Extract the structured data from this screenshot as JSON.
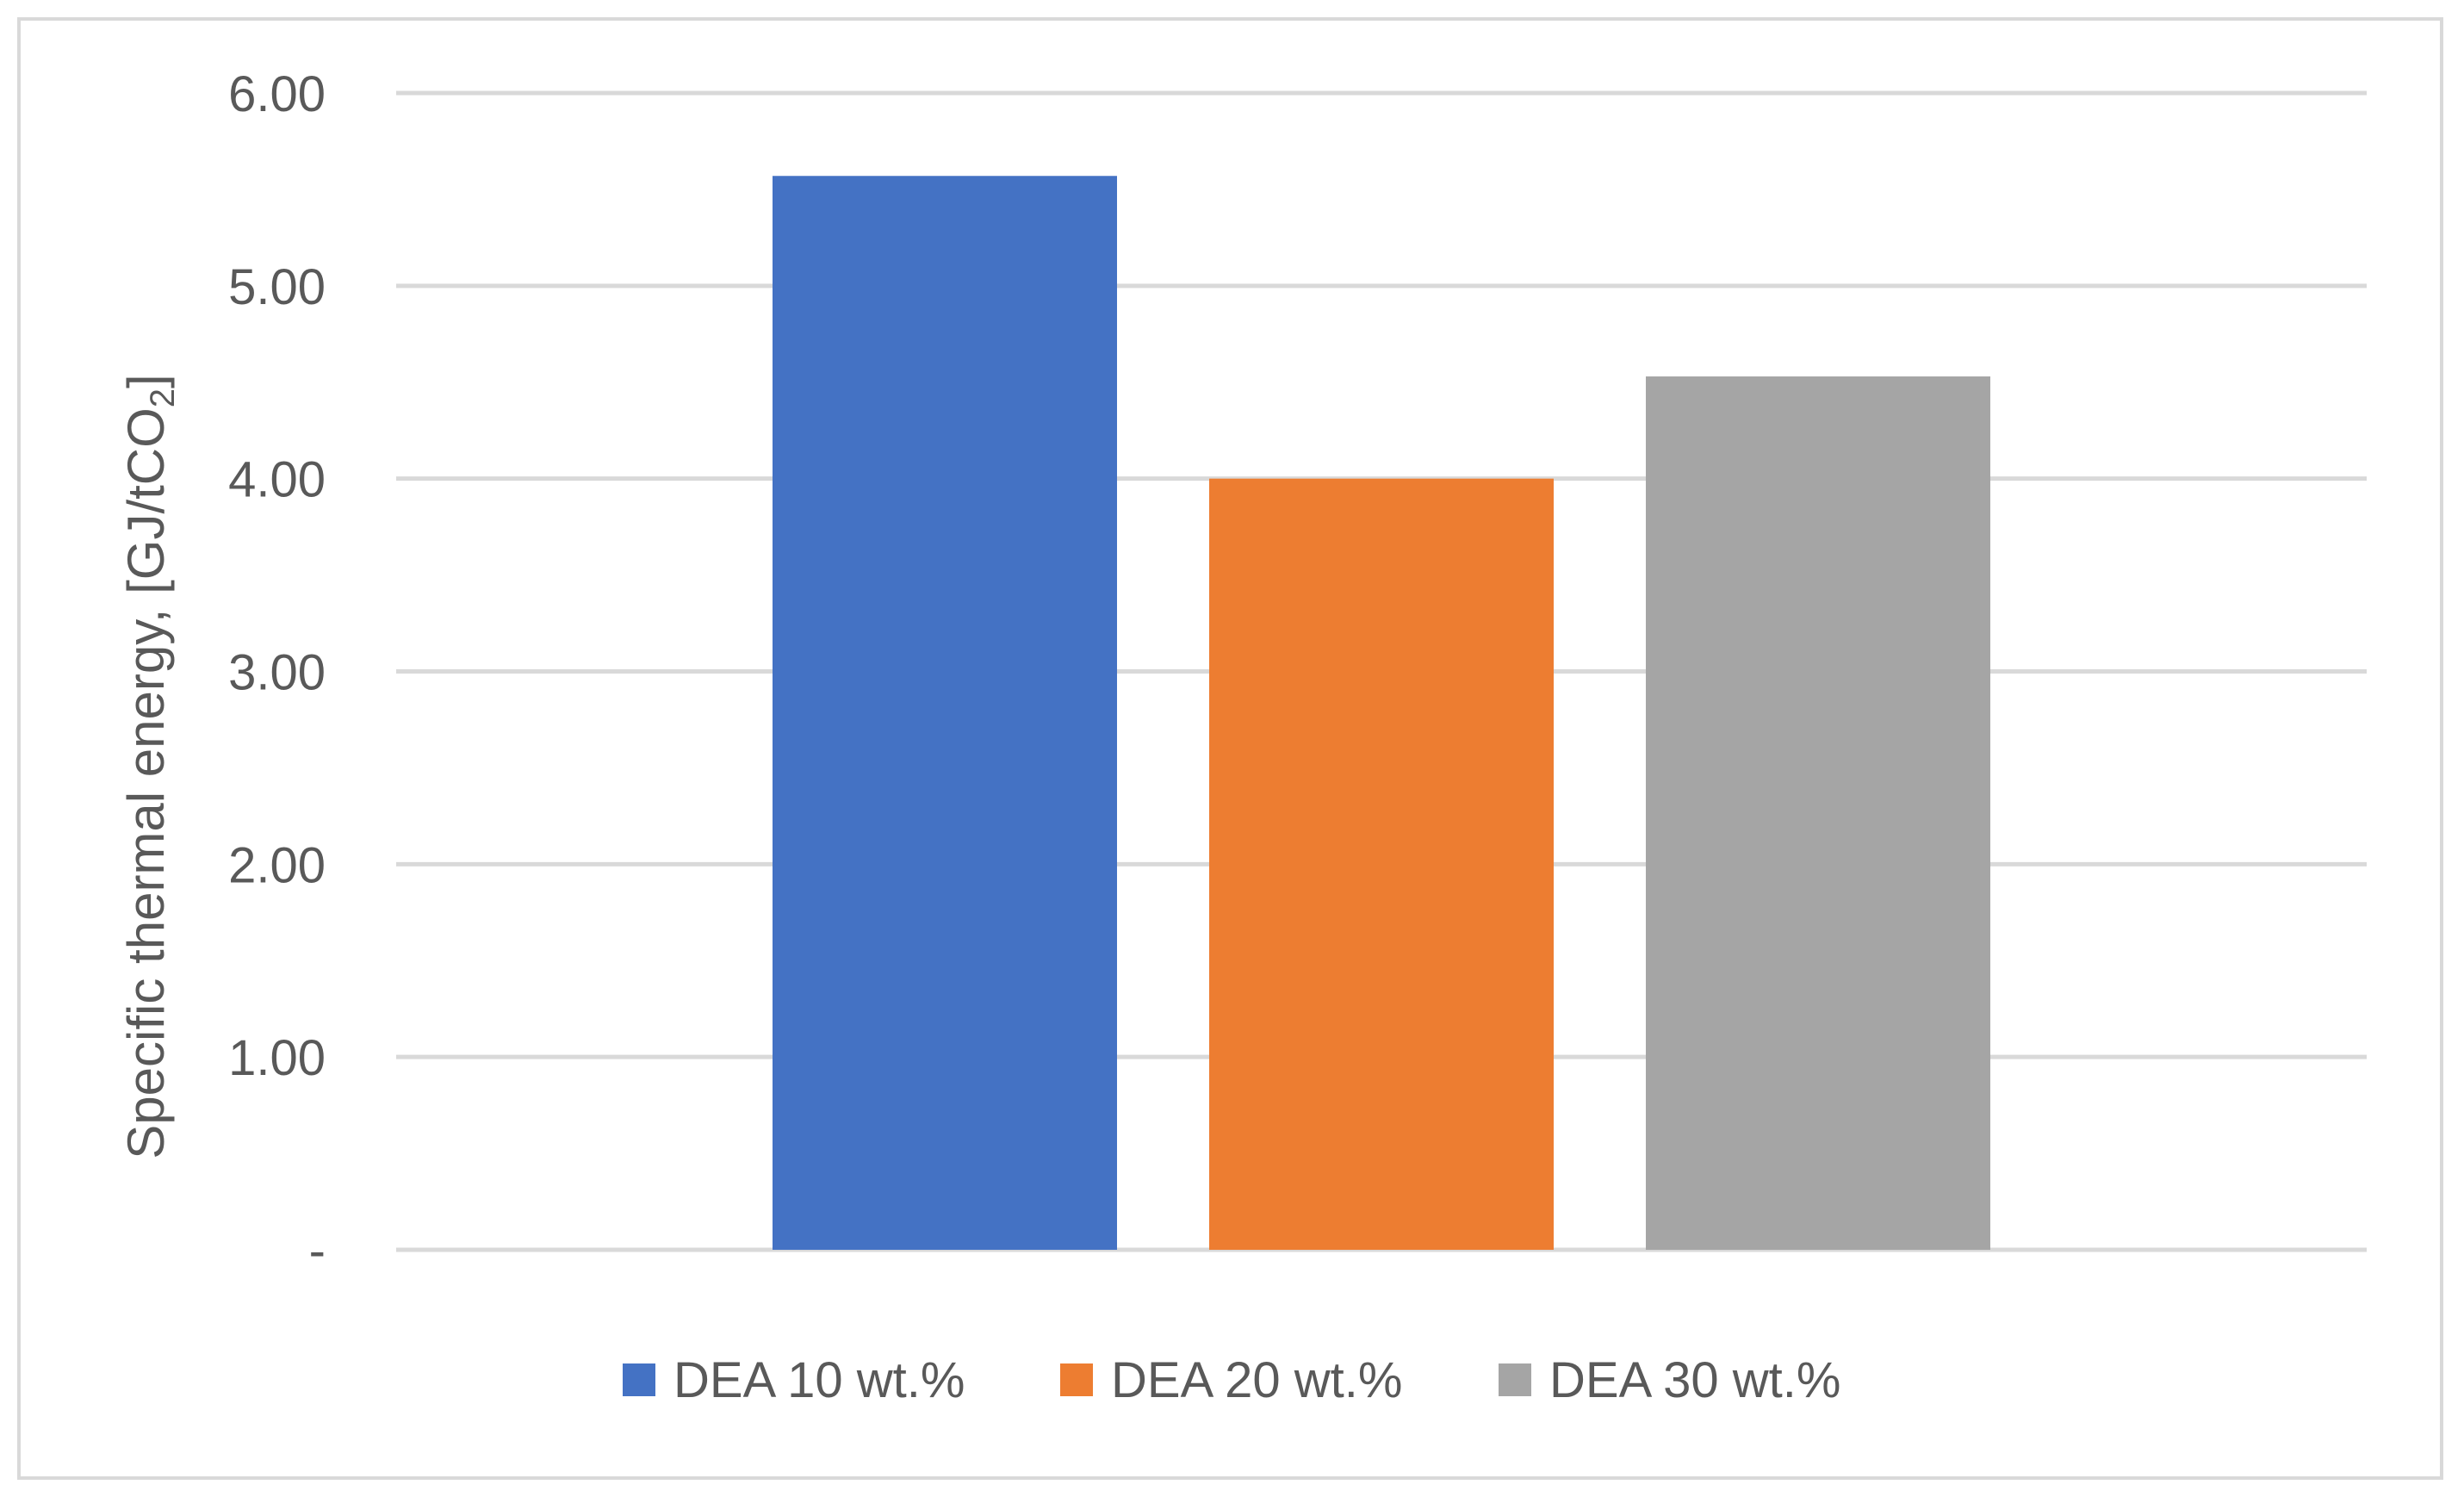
{
  "chart_data": {
    "type": "bar",
    "categories": [
      ""
    ],
    "series": [
      {
        "name": "DEA 10 wt.%",
        "values": [
          5.57
        ],
        "color": "#4472C4"
      },
      {
        "name": "DEA 20 wt.%",
        "values": [
          4.0
        ],
        "color": "#ED7D31"
      },
      {
        "name": "DEA 30 wt.%",
        "values": [
          4.53
        ],
        "color": "#A5A5A5"
      }
    ],
    "title": "",
    "xlabel": "",
    "ylabel": {
      "main": "Specific thermal energy, [GJ/tCO",
      "subscript": "2",
      "suffix": "]"
    },
    "ylim": [
      0,
      6
    ],
    "yticks": [
      {
        "value": 0,
        "label": "-"
      },
      {
        "value": 1,
        "label": "1.00"
      },
      {
        "value": 2,
        "label": "2.00"
      },
      {
        "value": 3,
        "label": "3.00"
      },
      {
        "value": 4,
        "label": "4.00"
      },
      {
        "value": 5,
        "label": "5.00"
      },
      {
        "value": 6,
        "label": "6.00"
      }
    ],
    "grid": true,
    "legend_position": "bottom",
    "colors": {
      "gridline": "#d9d9d9",
      "text": "#595959",
      "border": "#d9d9d9"
    }
  }
}
